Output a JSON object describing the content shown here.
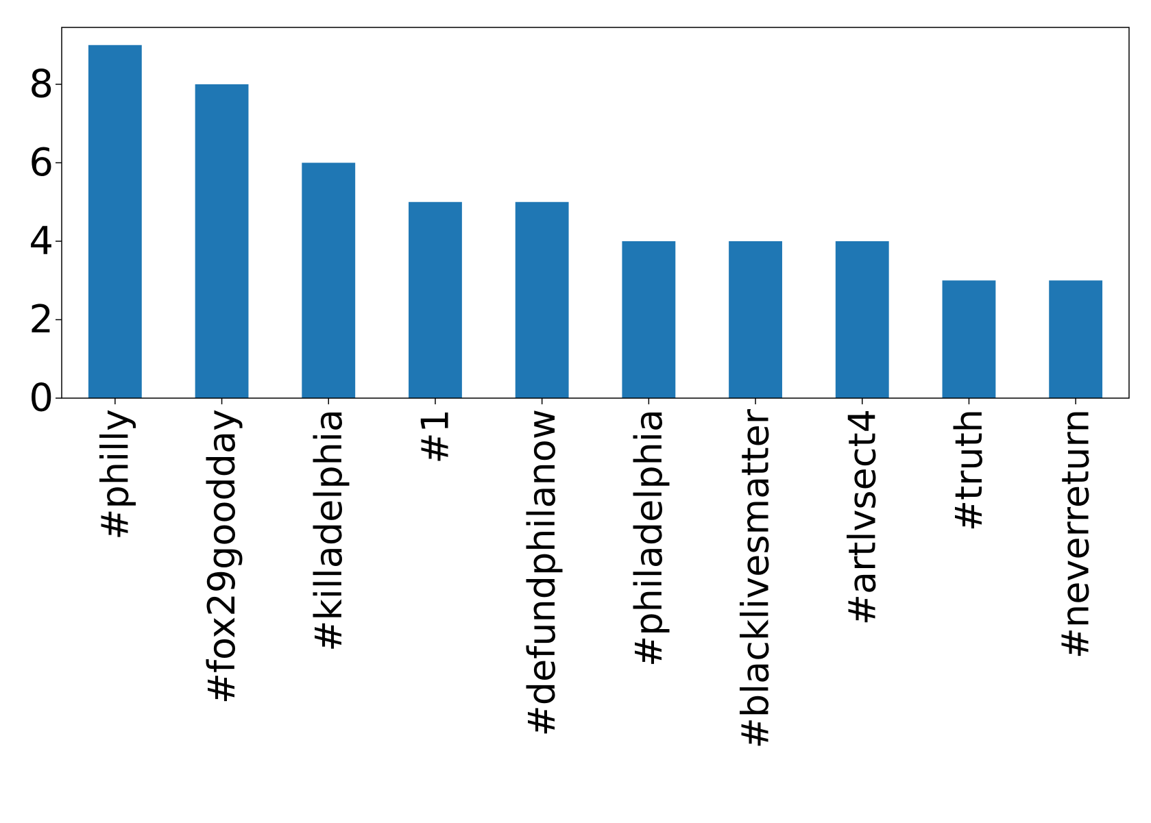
{
  "chart_data": {
    "type": "bar",
    "categories": [
      "#philly",
      "#fox29goodday",
      "#killadelphia",
      "#1",
      "#defundphilanow",
      "#philadelphia",
      "#blacklivesmatter",
      "#artlvsect4",
      "#truth",
      "#neverreturn"
    ],
    "values": [
      9,
      8,
      6,
      5,
      5,
      4,
      4,
      4,
      3,
      3
    ],
    "ylim": [
      0,
      9.45
    ],
    "yticks": [
      0,
      2,
      4,
      6,
      8
    ],
    "title": "",
    "xlabel": "",
    "ylabel": "",
    "grid": false,
    "bar_color": "#1f77b4",
    "axis_color": "#000000"
  }
}
